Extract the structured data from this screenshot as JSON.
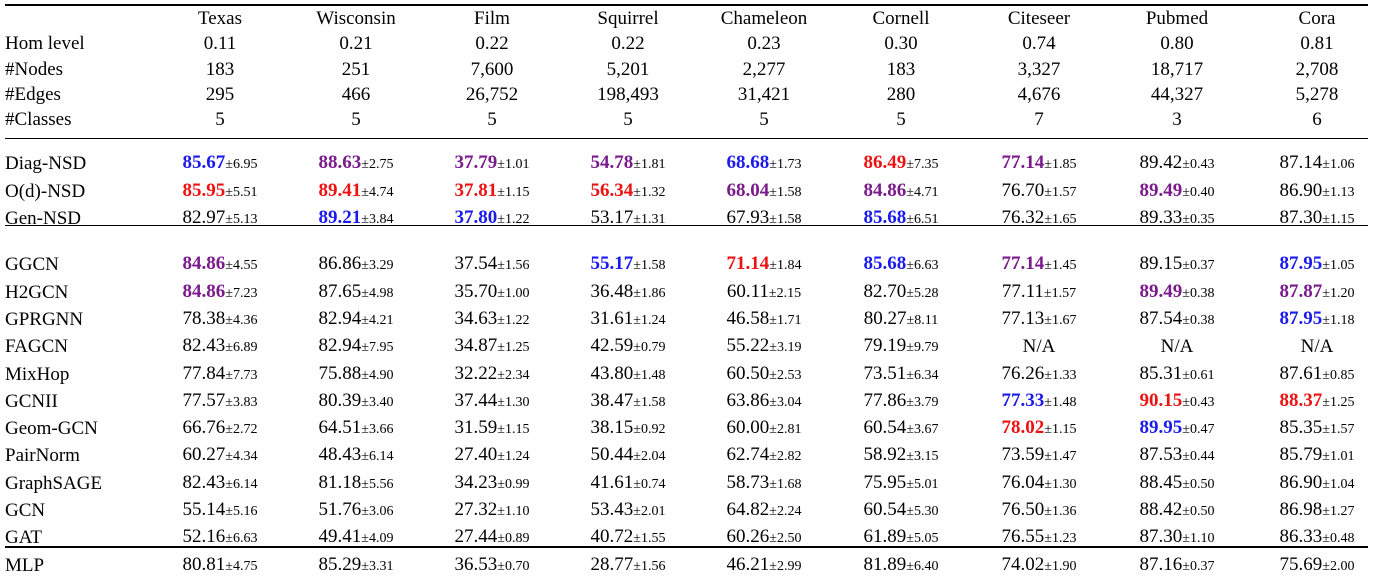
{
  "header": {
    "columns": [
      "Texas",
      "Wisconsin",
      "Film",
      "Squirrel",
      "Chameleon",
      "Cornell",
      "Citeseer",
      "Pubmed",
      "Cora"
    ]
  },
  "stats": [
    {
      "label": "Hom level",
      "values": [
        "0.11",
        "0.21",
        "0.22",
        "0.22",
        "0.23",
        "0.30",
        "0.74",
        "0.80",
        "0.81"
      ],
      "bold": true
    },
    {
      "label": "#Nodes",
      "values": [
        "183",
        "251",
        "7,600",
        "5,201",
        "2,277",
        "183",
        "3,327",
        "18,717",
        "2,708"
      ],
      "bold": false
    },
    {
      "label": "#Edges",
      "values": [
        "295",
        "466",
        "26,752",
        "198,493",
        "31,421",
        "280",
        "4,676",
        "44,327",
        "5,278"
      ],
      "bold": false
    },
    {
      "label": "#Classes",
      "values": [
        "5",
        "5",
        "5",
        "5",
        "5",
        "5",
        "7",
        "3",
        "6"
      ],
      "bold": false
    }
  ],
  "nsd_models": [
    {
      "label": "Diag-NSD",
      "cells": [
        {
          "v": "85.67",
          "s": "±6.95",
          "h": "second"
        },
        {
          "v": "88.63",
          "s": "±2.75",
          "h": "third"
        },
        {
          "v": "37.79",
          "s": "±1.01",
          "h": "third"
        },
        {
          "v": "54.78",
          "s": "±1.81",
          "h": "third"
        },
        {
          "v": "68.68",
          "s": "±1.73",
          "h": "second"
        },
        {
          "v": "86.49",
          "s": "±7.35",
          "h": "best"
        },
        {
          "v": "77.14",
          "s": "±1.85",
          "h": "third"
        },
        {
          "v": "89.42",
          "s": "±0.43",
          "h": ""
        },
        {
          "v": "87.14",
          "s": "±1.06",
          "h": ""
        }
      ]
    },
    {
      "label": "O(d)-NSD",
      "cells": [
        {
          "v": "85.95",
          "s": "±5.51",
          "h": "best"
        },
        {
          "v": "89.41",
          "s": "±4.74",
          "h": "best"
        },
        {
          "v": "37.81",
          "s": "±1.15",
          "h": "best"
        },
        {
          "v": "56.34",
          "s": "±1.32",
          "h": "best"
        },
        {
          "v": "68.04",
          "s": "±1.58",
          "h": "third"
        },
        {
          "v": "84.86",
          "s": "±4.71",
          "h": "third"
        },
        {
          "v": "76.70",
          "s": "±1.57",
          "h": ""
        },
        {
          "v": "89.49",
          "s": "±0.40",
          "h": "third"
        },
        {
          "v": "86.90",
          "s": "±1.13",
          "h": ""
        }
      ]
    },
    {
      "label": "Gen-NSD",
      "cells": [
        {
          "v": "82.97",
          "s": "±5.13",
          "h": ""
        },
        {
          "v": "89.21",
          "s": "±3.84",
          "h": "second"
        },
        {
          "v": "37.80",
          "s": "±1.22",
          "h": "second"
        },
        {
          "v": "53.17",
          "s": "±1.31",
          "h": ""
        },
        {
          "v": "67.93",
          "s": "±1.58",
          "h": ""
        },
        {
          "v": "85.68",
          "s": "±6.51",
          "h": "second"
        },
        {
          "v": "76.32",
          "s": "±1.65",
          "h": ""
        },
        {
          "v": "89.33",
          "s": "±0.35",
          "h": ""
        },
        {
          "v": "87.30",
          "s": "±1.15",
          "h": ""
        }
      ]
    }
  ],
  "baselines": [
    {
      "label": "GGCN",
      "cells": [
        {
          "v": "84.86",
          "s": "±4.55",
          "h": "third"
        },
        {
          "v": "86.86",
          "s": "±3.29",
          "h": ""
        },
        {
          "v": "37.54",
          "s": "±1.56",
          "h": ""
        },
        {
          "v": "55.17",
          "s": "±1.58",
          "h": "second"
        },
        {
          "v": "71.14",
          "s": "±1.84",
          "h": "best"
        },
        {
          "v": "85.68",
          "s": "±6.63",
          "h": "second"
        },
        {
          "v": "77.14",
          "s": "±1.45",
          "h": "third"
        },
        {
          "v": "89.15",
          "s": "±0.37",
          "h": ""
        },
        {
          "v": "87.95",
          "s": "±1.05",
          "h": "second"
        }
      ]
    },
    {
      "label": "H2GCN",
      "cells": [
        {
          "v": "84.86",
          "s": "±7.23",
          "h": "third"
        },
        {
          "v": "87.65",
          "s": "±4.98",
          "h": ""
        },
        {
          "v": "35.70",
          "s": "±1.00",
          "h": ""
        },
        {
          "v": "36.48",
          "s": "±1.86",
          "h": ""
        },
        {
          "v": "60.11",
          "s": "±2.15",
          "h": ""
        },
        {
          "v": "82.70",
          "s": "±5.28",
          "h": ""
        },
        {
          "v": "77.11",
          "s": "±1.57",
          "h": ""
        },
        {
          "v": "89.49",
          "s": "±0.38",
          "h": "third"
        },
        {
          "v": "87.87",
          "s": "±1.20",
          "h": "third"
        }
      ]
    },
    {
      "label": "GPRGNN",
      "cells": [
        {
          "v": "78.38",
          "s": "±4.36",
          "h": ""
        },
        {
          "v": "82.94",
          "s": "±4.21",
          "h": ""
        },
        {
          "v": "34.63",
          "s": "±1.22",
          "h": ""
        },
        {
          "v": "31.61",
          "s": "±1.24",
          "h": ""
        },
        {
          "v": "46.58",
          "s": "±1.71",
          "h": ""
        },
        {
          "v": "80.27",
          "s": "±8.11",
          "h": ""
        },
        {
          "v": "77.13",
          "s": "±1.67",
          "h": ""
        },
        {
          "v": "87.54",
          "s": "±0.38",
          "h": ""
        },
        {
          "v": "87.95",
          "s": "±1.18",
          "h": "second"
        }
      ]
    },
    {
      "label": "FAGCN",
      "cells": [
        {
          "v": "82.43",
          "s": "±6.89",
          "h": ""
        },
        {
          "v": "82.94",
          "s": "±7.95",
          "h": ""
        },
        {
          "v": "34.87",
          "s": "±1.25",
          "h": ""
        },
        {
          "v": "42.59",
          "s": "±0.79",
          "h": ""
        },
        {
          "v": "55.22",
          "s": "±3.19",
          "h": ""
        },
        {
          "v": "79.19",
          "s": "±9.79",
          "h": ""
        },
        {
          "v": "N/A",
          "s": "",
          "h": ""
        },
        {
          "v": "N/A",
          "s": "",
          "h": ""
        },
        {
          "v": "N/A",
          "s": "",
          "h": ""
        }
      ]
    },
    {
      "label": "MixHop",
      "cells": [
        {
          "v": "77.84",
          "s": "±7.73",
          "h": ""
        },
        {
          "v": "75.88",
          "s": "±4.90",
          "h": ""
        },
        {
          "v": "32.22",
          "s": "±2.34",
          "h": ""
        },
        {
          "v": "43.80",
          "s": "±1.48",
          "h": ""
        },
        {
          "v": "60.50",
          "s": "±2.53",
          "h": ""
        },
        {
          "v": "73.51",
          "s": "±6.34",
          "h": ""
        },
        {
          "v": "76.26",
          "s": "±1.33",
          "h": ""
        },
        {
          "v": "85.31",
          "s": "±0.61",
          "h": ""
        },
        {
          "v": "87.61",
          "s": "±0.85",
          "h": ""
        }
      ]
    },
    {
      "label": "GCNII",
      "cells": [
        {
          "v": "77.57",
          "s": "±3.83",
          "h": ""
        },
        {
          "v": "80.39",
          "s": "±3.40",
          "h": ""
        },
        {
          "v": "37.44",
          "s": "±1.30",
          "h": ""
        },
        {
          "v": "38.47",
          "s": "±1.58",
          "h": ""
        },
        {
          "v": "63.86",
          "s": "±3.04",
          "h": ""
        },
        {
          "v": "77.86",
          "s": "±3.79",
          "h": ""
        },
        {
          "v": "77.33",
          "s": "±1.48",
          "h": "second"
        },
        {
          "v": "90.15",
          "s": "±0.43",
          "h": "best"
        },
        {
          "v": "88.37",
          "s": "±1.25",
          "h": "best"
        }
      ]
    },
    {
      "label": "Geom-GCN",
      "cells": [
        {
          "v": "66.76",
          "s": "±2.72",
          "h": ""
        },
        {
          "v": "64.51",
          "s": "±3.66",
          "h": ""
        },
        {
          "v": "31.59",
          "s": "±1.15",
          "h": ""
        },
        {
          "v": "38.15",
          "s": "±0.92",
          "h": ""
        },
        {
          "v": "60.00",
          "s": "±2.81",
          "h": ""
        },
        {
          "v": "60.54",
          "s": "±3.67",
          "h": ""
        },
        {
          "v": "78.02",
          "s": "±1.15",
          "h": "best"
        },
        {
          "v": "89.95",
          "s": "±0.47",
          "h": "second"
        },
        {
          "v": "85.35",
          "s": "±1.57",
          "h": ""
        }
      ]
    },
    {
      "label": "PairNorm",
      "cells": [
        {
          "v": "60.27",
          "s": "±4.34",
          "h": ""
        },
        {
          "v": "48.43",
          "s": "±6.14",
          "h": ""
        },
        {
          "v": "27.40",
          "s": "±1.24",
          "h": ""
        },
        {
          "v": "50.44",
          "s": "±2.04",
          "h": ""
        },
        {
          "v": "62.74",
          "s": "±2.82",
          "h": ""
        },
        {
          "v": "58.92",
          "s": "±3.15",
          "h": ""
        },
        {
          "v": "73.59",
          "s": "±1.47",
          "h": ""
        },
        {
          "v": "87.53",
          "s": "±0.44",
          "h": ""
        },
        {
          "v": "85.79",
          "s": "±1.01",
          "h": ""
        }
      ]
    },
    {
      "label": "GraphSAGE",
      "cells": [
        {
          "v": "82.43",
          "s": "±6.14",
          "h": ""
        },
        {
          "v": "81.18",
          "s": "±5.56",
          "h": ""
        },
        {
          "v": "34.23",
          "s": "±0.99",
          "h": ""
        },
        {
          "v": "41.61",
          "s": "±0.74",
          "h": ""
        },
        {
          "v": "58.73",
          "s": "±1.68",
          "h": ""
        },
        {
          "v": "75.95",
          "s": "±5.01",
          "h": ""
        },
        {
          "v": "76.04",
          "s": "±1.30",
          "h": ""
        },
        {
          "v": "88.45",
          "s": "±0.50",
          "h": ""
        },
        {
          "v": "86.90",
          "s": "±1.04",
          "h": ""
        }
      ]
    },
    {
      "label": "GCN",
      "cells": [
        {
          "v": "55.14",
          "s": "±5.16",
          "h": ""
        },
        {
          "v": "51.76",
          "s": "±3.06",
          "h": ""
        },
        {
          "v": "27.32",
          "s": "±1.10",
          "h": ""
        },
        {
          "v": "53.43",
          "s": "±2.01",
          "h": ""
        },
        {
          "v": "64.82",
          "s": "±2.24",
          "h": ""
        },
        {
          "v": "60.54",
          "s": "±5.30",
          "h": ""
        },
        {
          "v": "76.50",
          "s": "±1.36",
          "h": ""
        },
        {
          "v": "88.42",
          "s": "±0.50",
          "h": ""
        },
        {
          "v": "86.98",
          "s": "±1.27",
          "h": ""
        }
      ]
    },
    {
      "label": "GAT",
      "cells": [
        {
          "v": "52.16",
          "s": "±6.63",
          "h": ""
        },
        {
          "v": "49.41",
          "s": "±4.09",
          "h": ""
        },
        {
          "v": "27.44",
          "s": "±0.89",
          "h": ""
        },
        {
          "v": "40.72",
          "s": "±1.55",
          "h": ""
        },
        {
          "v": "60.26",
          "s": "±2.50",
          "h": ""
        },
        {
          "v": "61.89",
          "s": "±5.05",
          "h": ""
        },
        {
          "v": "76.55",
          "s": "±1.23",
          "h": ""
        },
        {
          "v": "87.30",
          "s": "±1.10",
          "h": ""
        },
        {
          "v": "86.33",
          "s": "±0.48",
          "h": ""
        }
      ]
    },
    {
      "label": "MLP",
      "cells": [
        {
          "v": "80.81",
          "s": "±4.75",
          "h": ""
        },
        {
          "v": "85.29",
          "s": "±3.31",
          "h": ""
        },
        {
          "v": "36.53",
          "s": "±0.70",
          "h": ""
        },
        {
          "v": "28.77",
          "s": "±1.56",
          "h": ""
        },
        {
          "v": "46.21",
          "s": "±2.99",
          "h": ""
        },
        {
          "v": "81.89",
          "s": "±6.40",
          "h": ""
        },
        {
          "v": "74.02",
          "s": "±1.90",
          "h": ""
        },
        {
          "v": "87.16",
          "s": "±0.37",
          "h": ""
        },
        {
          "v": "75.69",
          "s": "±2.00",
          "h": ""
        }
      ]
    }
  ],
  "colors": {
    "best": "#ee1111",
    "second": "#1a1aee",
    "third": "#7a1a8c",
    "text": "#000000"
  }
}
